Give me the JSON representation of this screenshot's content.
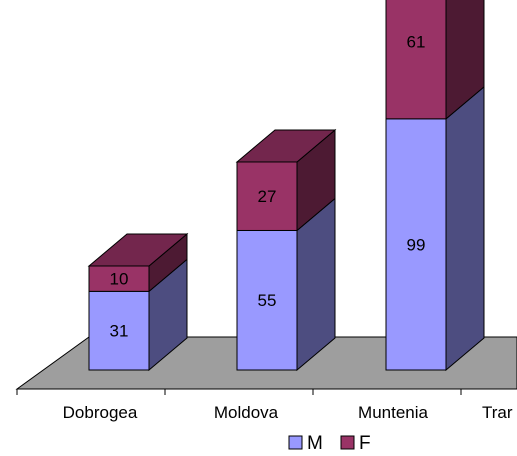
{
  "chart_data": {
    "type": "bar",
    "stacked": true,
    "three_d": true,
    "categories": [
      "Dobrogea",
      "Moldova",
      "Muntenia",
      "Trar"
    ],
    "series": [
      {
        "name": "M",
        "values": [
          31,
          55,
          99,
          null
        ],
        "color": "#9999ff"
      },
      {
        "name": "F",
        "values": [
          10,
          27,
          61,
          null
        ],
        "color": "#993366"
      }
    ],
    "legend_position": "bottom",
    "grid": false
  }
}
